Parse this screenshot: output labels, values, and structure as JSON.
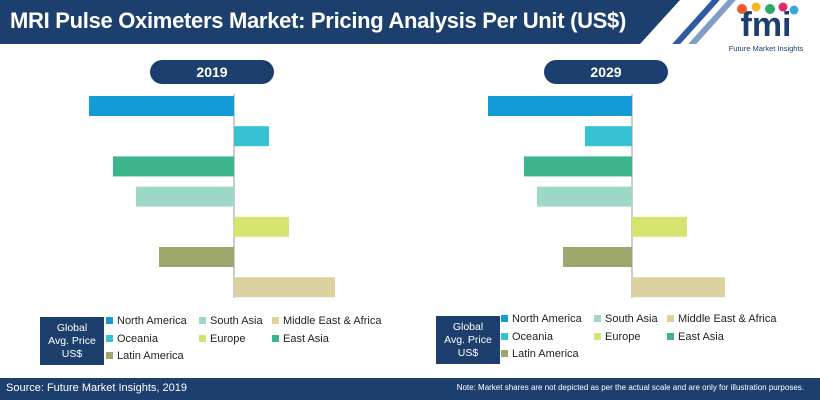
{
  "header": {
    "title": "MRI Pulse Oximeters Market: Pricing Analysis Per Unit (US$)"
  },
  "logo": {
    "letters": "fmi",
    "tagline": "Future Market Insights"
  },
  "legend": {
    "box_label_lines": [
      "Global",
      "Avg. Price",
      "US$"
    ]
  },
  "footer": {
    "source": "Source: Future Market Insights, 2019",
    "note": "Note: Market shares are not depicted as per the actual scale and are only for illustration purposes."
  },
  "colors": {
    "navy": "#1d3f6e",
    "north_america": "#139bd6",
    "oceania": "#35c3d4",
    "east_asia": "#3db58c",
    "south_asia": "#9fd8c9",
    "europe": "#d6e36f",
    "latin_america": "#9ea66b",
    "middle_east_africa": "#dcd29f"
  },
  "chart_data": [
    {
      "type": "bar",
      "orientation": "horizontal-diverging",
      "title": "2019",
      "categories": [
        "North America",
        "Oceania",
        "East Asia",
        "South Asia",
        "Europe",
        "Latin America",
        "Middle East & Africa"
      ],
      "values": [
        -145,
        35,
        -121,
        -98,
        55,
        -75,
        101
      ],
      "axis_labels_shown": false
    },
    {
      "type": "bar",
      "orientation": "horizontal-diverging",
      "title": "2029",
      "categories": [
        "North America",
        "Oceania",
        "East Asia",
        "South Asia",
        "Europe",
        "Latin America",
        "Middle East & Africa"
      ],
      "values": [
        -144,
        -47,
        -108,
        -95,
        55,
        -69,
        93
      ],
      "axis_labels_shown": false
    }
  ],
  "legend_order": [
    "North America",
    "South Asia",
    "Middle East & Africa",
    "Oceania",
    "Europe",
    "East Asia",
    "Latin America"
  ]
}
